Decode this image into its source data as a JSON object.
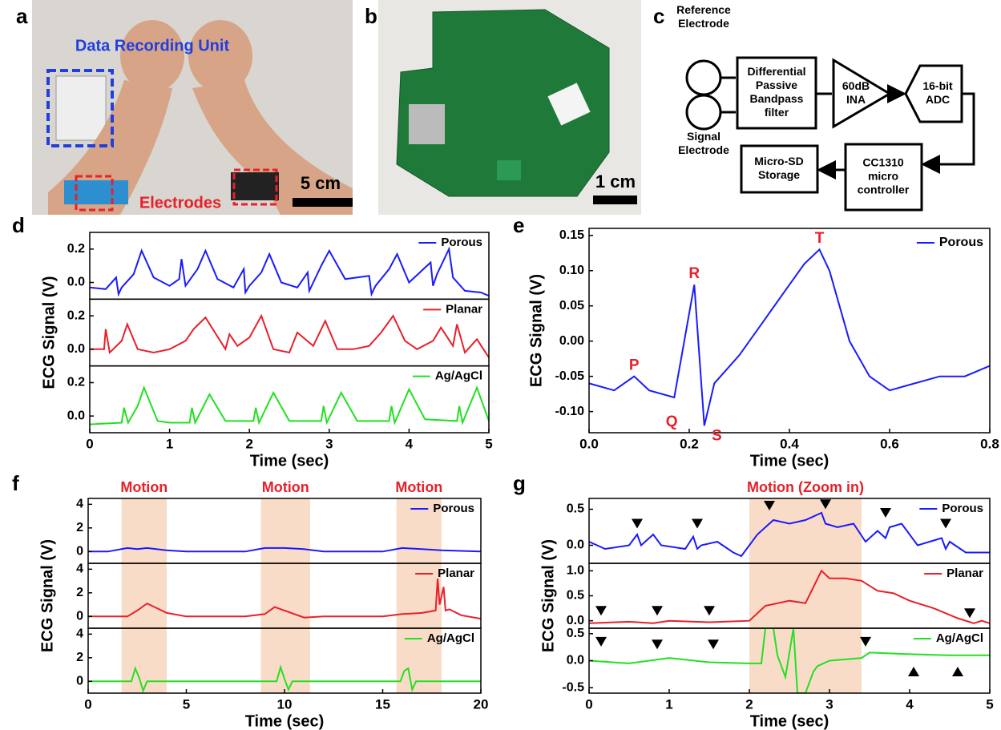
{
  "panel_letters": {
    "a": "a",
    "b": "b",
    "c": "c"
  },
  "photo_a": {
    "title": "Data Recording Unit",
    "electrodes": "Electrodes",
    "scale": "5 cm"
  },
  "photo_b": {
    "scale": "1 cm"
  },
  "diagram_c": {
    "nodes": [
      {
        "label": [
          "Reference",
          "Electrode"
        ]
      },
      {
        "label": [
          "Signal",
          "Electrode"
        ]
      },
      {
        "label": [
          "Differential",
          "Passive",
          "Bandpass",
          "filter"
        ]
      },
      {
        "label": [
          "60dB",
          "INA"
        ]
      },
      {
        "label": [
          "16-bit",
          "ADC"
        ]
      },
      {
        "label": [
          "CC1310",
          "micro",
          "controller"
        ]
      },
      {
        "label": [
          "Micro-SD",
          "Storage"
        ]
      }
    ]
  },
  "chart_data": [
    {
      "type": "line",
      "panel": "d",
      "ylabel": "ECG Signal (V)",
      "xlabel": "Time (sec)",
      "xlim": [
        0,
        5
      ],
      "xticks": [
        0,
        1,
        2,
        3,
        4,
        5
      ],
      "series": [
        {
          "name": "Porous",
          "color": "#1a1aff",
          "ylim": [
            -0.1,
            0.3
          ],
          "yticks": [
            {
              "value": 0,
              "label": "0.0"
            },
            0.2
          ],
          "x": [
            0,
            0.2,
            0.33,
            0.36,
            0.4,
            0.55,
            0.65,
            0.8,
            1.0,
            1.12,
            1.15,
            1.2,
            1.35,
            1.45,
            1.6,
            1.8,
            1.93,
            1.95,
            2.0,
            2.15,
            2.25,
            2.4,
            2.6,
            2.73,
            2.75,
            2.8,
            2.9,
            3.0,
            3.2,
            3.5,
            3.53,
            3.58,
            3.75,
            3.85,
            4.0,
            4.27,
            4.3,
            4.35,
            4.5,
            4.55,
            4.7,
            4.9,
            5.0
          ],
          "values": [
            -0.03,
            -0.04,
            0.03,
            -0.07,
            -0.03,
            0.05,
            0.19,
            0.03,
            -0.02,
            0.02,
            0.14,
            -0.02,
            0.08,
            0.19,
            0.02,
            -0.03,
            0.08,
            -0.06,
            -0.02,
            0.06,
            0.17,
            0.0,
            -0.03,
            0.06,
            -0.05,
            0.0,
            0.1,
            0.19,
            0.02,
            0.04,
            -0.07,
            -0.02,
            0.08,
            0.17,
            0.0,
            0.12,
            -0.02,
            0.05,
            0.2,
            0.03,
            -0.05,
            -0.06,
            -0.08
          ]
        },
        {
          "name": "Planar",
          "color": "#e8202a",
          "ylim": [
            -0.1,
            0.3
          ],
          "yticks": [
            {
              "value": 0,
              "label": "0.0"
            },
            0.2
          ],
          "x": [
            0,
            0.18,
            0.2,
            0.25,
            0.4,
            0.47,
            0.6,
            0.8,
            1.0,
            1.2,
            1.3,
            1.45,
            1.7,
            1.75,
            1.85,
            2.0,
            2.15,
            2.3,
            2.5,
            2.6,
            2.8,
            2.95,
            3.1,
            3.3,
            3.5,
            3.65,
            3.8,
            3.95,
            4.1,
            4.3,
            4.4,
            4.55,
            4.6,
            4.7,
            4.85,
            5.0
          ],
          "values": [
            0.0,
            0.0,
            0.12,
            -0.02,
            0.05,
            0.15,
            0.0,
            -0.02,
            0.0,
            0.05,
            0.12,
            0.19,
            0.0,
            0.09,
            0.02,
            0.07,
            0.2,
            0.0,
            -0.02,
            0.1,
            0.02,
            0.17,
            0.0,
            0.0,
            0.02,
            0.1,
            0.2,
            0.05,
            0.0,
            0.05,
            0.13,
            0.02,
            0.15,
            -0.02,
            0.06,
            -0.05
          ]
        },
        {
          "name": "Ag/AgCl",
          "color": "#22e022",
          "ylim": [
            -0.1,
            0.3
          ],
          "yticks": [
            {
              "value": 0,
              "label": "0.0"
            },
            0.2
          ],
          "x": [
            0,
            0.4,
            0.43,
            0.48,
            0.6,
            0.68,
            0.85,
            1.0,
            1.25,
            1.28,
            1.32,
            1.5,
            1.7,
            2.05,
            2.08,
            2.12,
            2.3,
            2.5,
            2.9,
            2.93,
            2.97,
            3.15,
            3.35,
            3.75,
            3.78,
            3.82,
            4.0,
            4.2,
            4.6,
            4.63,
            4.67,
            4.85,
            5.0
          ],
          "values": [
            -0.05,
            -0.04,
            0.05,
            -0.04,
            0.06,
            0.17,
            -0.03,
            -0.04,
            -0.04,
            0.05,
            -0.04,
            0.13,
            -0.03,
            -0.03,
            0.05,
            -0.04,
            0.14,
            -0.03,
            -0.03,
            0.06,
            -0.04,
            0.14,
            -0.03,
            -0.03,
            0.06,
            -0.04,
            0.16,
            -0.02,
            -0.03,
            0.06,
            -0.04,
            0.17,
            -0.03
          ]
        }
      ]
    },
    {
      "type": "line",
      "panel": "e",
      "ylabel": "ECG Signal (V)",
      "xlabel": "Time (sec)",
      "xlim": [
        0,
        0.8
      ],
      "xticks": [
        {
          "value": 0,
          "label": "0.0"
        },
        0.2,
        0.4,
        0.6,
        0.8
      ],
      "ylim": [
        -0.13,
        0.16
      ],
      "yticks": [
        {
          "value": -0.1,
          "label": "-0.10"
        },
        -0.05,
        {
          "value": 0,
          "label": "0.00"
        },
        0.05,
        {
          "value": 0.1,
          "label": "0.10"
        },
        0.15
      ],
      "series": [
        {
          "name": "Porous",
          "color": "#1a1aff",
          "x": [
            0,
            0.05,
            0.09,
            0.12,
            0.17,
            0.19,
            0.21,
            0.23,
            0.25,
            0.3,
            0.35,
            0.4,
            0.43,
            0.46,
            0.48,
            0.52,
            0.56,
            0.6,
            0.65,
            0.7,
            0.75,
            0.8
          ],
          "values": [
            -0.06,
            -0.07,
            -0.05,
            -0.07,
            -0.08,
            0.0,
            0.08,
            -0.12,
            -0.06,
            -0.02,
            0.03,
            0.08,
            0.11,
            0.13,
            0.1,
            0.0,
            -0.05,
            -0.07,
            -0.06,
            -0.05,
            -0.05,
            -0.035
          ]
        }
      ],
      "annotations": [
        {
          "text": "P",
          "x": 0.09,
          "y": -0.035
        },
        {
          "text": "Q",
          "x": 0.165,
          "y": -0.115
        },
        {
          "text": "R",
          "x": 0.21,
          "y": 0.095
        },
        {
          "text": "S",
          "x": 0.255,
          "y": -0.135
        },
        {
          "text": "T",
          "x": 0.46,
          "y": 0.145
        }
      ]
    },
    {
      "type": "line",
      "panel": "f",
      "ylabel": "ECG Signal (V)",
      "xlabel": "Time (sec)",
      "xlim": [
        0,
        20
      ],
      "xticks": [
        0,
        5,
        10,
        15,
        20
      ],
      "shaded": [
        [
          1.7,
          4
        ],
        [
          8.8,
          11.3
        ],
        [
          15.7,
          18
        ]
      ],
      "shaded_labels": [
        "Motion",
        "Motion",
        "Motion"
      ],
      "series": [
        {
          "name": "Porous",
          "color": "#1a1aff",
          "ylim": [
            -1,
            4.5
          ],
          "yticks": [
            0,
            2,
            4
          ],
          "x": [
            0,
            1,
            2,
            2.5,
            3,
            4,
            5,
            8,
            9,
            10,
            11,
            12,
            15,
            16,
            17,
            18,
            20
          ],
          "values": [
            0,
            0,
            0.3,
            0.2,
            0.3,
            0.1,
            0,
            0,
            0.3,
            0.3,
            0.2,
            0,
            0,
            0.3,
            0.2,
            0.1,
            0
          ]
        },
        {
          "name": "Planar",
          "color": "#e8202a",
          "ylim": [
            -1,
            4.5
          ],
          "yticks": [
            0,
            2,
            4
          ],
          "x": [
            0,
            2,
            2.5,
            3,
            3.5,
            4,
            5,
            8,
            9,
            9.5,
            10,
            11,
            12,
            15,
            16,
            17,
            17.7,
            17.8,
            17.9,
            18.1,
            18.2,
            18.4,
            19,
            20
          ],
          "values": [
            0,
            0,
            0.5,
            1.1,
            0.7,
            0.3,
            0,
            0,
            0.2,
            0.8,
            0.5,
            -0.1,
            0,
            0,
            0.2,
            0.3,
            0.5,
            3.2,
            1.0,
            2.5,
            0.5,
            0.6,
            0.1,
            -0.2
          ]
        },
        {
          "name": "Ag/AgCl",
          "color": "#22e022",
          "ylim": [
            -1,
            4.5
          ],
          "yticks": [
            0,
            2,
            4
          ],
          "x": [
            0,
            2.2,
            2.4,
            2.6,
            2.8,
            3.0,
            4,
            9.6,
            9.8,
            10.0,
            10.2,
            10.4,
            11,
            15.9,
            16.1,
            16.3,
            16.5,
            16.7,
            17.5,
            20
          ],
          "values": [
            0,
            0,
            1.1,
            0.3,
            -0.8,
            0,
            0,
            0,
            1.2,
            0.2,
            -0.7,
            0,
            0,
            0,
            0.9,
            1.1,
            -0.7,
            0,
            0,
            0
          ]
        }
      ]
    },
    {
      "type": "line",
      "panel": "g",
      "ylabel": "ECG Signal (V)",
      "xlabel": "Time (sec)",
      "xlim": [
        0,
        5
      ],
      "xticks": [
        0,
        1,
        2,
        3,
        4,
        5
      ],
      "shaded": [
        [
          2,
          3.4
        ]
      ],
      "shaded_labels": [
        "Motion (Zoom in)"
      ],
      "series": [
        {
          "name": "Porous",
          "color": "#1a1aff",
          "ylim": [
            -0.25,
            0.65
          ],
          "yticks": [
            {
              "value": 0,
              "label": "0.0"
            },
            0.5
          ],
          "x": [
            0,
            0.2,
            0.5,
            0.6,
            0.65,
            0.8,
            0.9,
            1.2,
            1.3,
            1.35,
            1.4,
            1.6,
            1.8,
            1.9,
            2.1,
            2.3,
            2.5,
            2.7,
            2.9,
            2.95,
            3.1,
            3.3,
            3.45,
            3.6,
            3.7,
            3.75,
            3.9,
            4.1,
            4.4,
            4.45,
            4.5,
            4.7,
            4.9,
            5.0
          ],
          "values": [
            0.05,
            -0.05,
            0.0,
            0.15,
            0.0,
            0.15,
            0.0,
            -0.05,
            0.12,
            -0.05,
            0.0,
            0.05,
            -0.1,
            -0.15,
            0.15,
            0.35,
            0.3,
            0.35,
            0.45,
            0.3,
            0.25,
            0.3,
            0.05,
            0.2,
            0.1,
            0.25,
            0.3,
            0.0,
            0.1,
            -0.05,
            0.05,
            -0.1,
            -0.1,
            -0.1
          ],
          "markers_down": [
            {
              "x": 0.6,
              "y": 0.3
            },
            {
              "x": 1.35,
              "y": 0.3
            },
            {
              "x": 2.25,
              "y": 0.55
            },
            {
              "x": 2.95,
              "y": 0.57
            },
            {
              "x": 3.7,
              "y": 0.45
            },
            {
              "x": 4.45,
              "y": 0.3
            }
          ]
        },
        {
          "name": "Planar",
          "color": "#e8202a",
          "ylim": [
            -0.15,
            1.15
          ],
          "yticks": [
            {
              "value": 0,
              "label": "0.0"
            },
            0.5,
            {
              "value": 1,
              "label": "1.0"
            }
          ],
          "x": [
            0,
            0.5,
            0.8,
            1.0,
            1.5,
            2.0,
            2.2,
            2.5,
            2.7,
            2.9,
            3.0,
            3.2,
            3.4,
            3.6,
            3.8,
            4.0,
            4.3,
            4.6,
            4.8,
            4.9,
            5.0
          ],
          "values": [
            -0.05,
            -0.02,
            -0.05,
            0.0,
            -0.03,
            0.0,
            0.3,
            0.4,
            0.35,
            1.0,
            0.85,
            0.85,
            0.8,
            0.6,
            0.55,
            0.4,
            0.25,
            0.05,
            -0.05,
            0.0,
            -0.05
          ],
          "markers_down": [
            {
              "x": 0.15,
              "y": 0.2
            },
            {
              "x": 0.85,
              "y": 0.2
            },
            {
              "x": 1.5,
              "y": 0.2
            },
            {
              "x": 4.75,
              "y": 0.15
            }
          ]
        },
        {
          "name": "Ag/AgCl",
          "color": "#22e022",
          "ylim": [
            -0.6,
            0.6
          ],
          "yticks": [
            -0.5,
            {
              "value": 0,
              "label": "0.0"
            },
            0.5
          ],
          "x": [
            0,
            0.5,
            1.0,
            1.5,
            2.0,
            2.15,
            2.2,
            2.3,
            2.35,
            2.45,
            2.55,
            2.6,
            2.7,
            2.8,
            2.85,
            3.0,
            3.4,
            3.5,
            4.0,
            4.5,
            5.0
          ],
          "values": [
            0,
            -0.05,
            0.05,
            -0.03,
            -0.05,
            -0.05,
            0.6,
            0.6,
            0.1,
            -0.3,
            0.6,
            -0.6,
            -0.6,
            -0.2,
            -0.1,
            0.0,
            0.05,
            0.15,
            0.12,
            0.1,
            0.1
          ],
          "markers_down": [
            {
              "x": 0.15,
              "y": 0.35
            },
            {
              "x": 0.85,
              "y": 0.3
            },
            {
              "x": 1.55,
              "y": 0.3
            },
            {
              "x": 3.45,
              "y": 0.35
            }
          ],
          "markers_up": [
            {
              "x": 4.05,
              "y": -0.2
            },
            {
              "x": 4.6,
              "y": -0.2
            }
          ]
        }
      ]
    }
  ]
}
